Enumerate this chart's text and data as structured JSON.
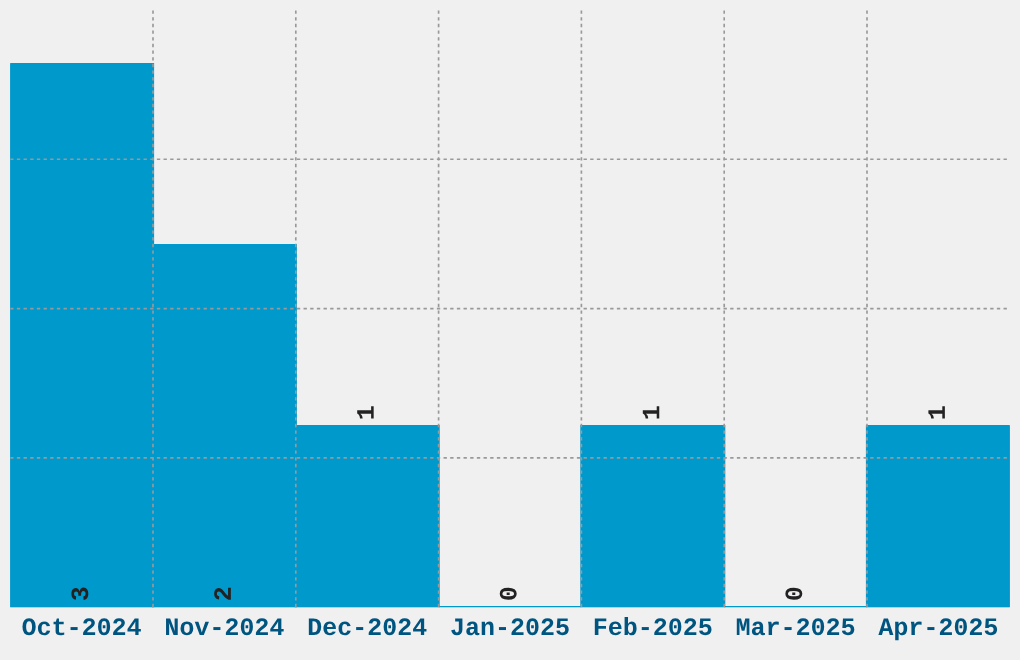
{
  "chart_data": {
    "type": "bar",
    "categories": [
      "Oct-2024",
      "Nov-2024",
      "Dec-2024",
      "Jan-2025",
      "Feb-2025",
      "Mar-2025",
      "Apr-2025"
    ],
    "values": [
      3,
      2,
      1,
      0,
      1,
      0,
      1
    ],
    "color": "#0099cc",
    "ylim": [
      0,
      3.3
    ],
    "yticks": [
      {
        "value": 0.825,
        "label": null
      },
      {
        "value": 1.65,
        "label": null
      },
      {
        "value": 2.475,
        "label": null
      }
    ],
    "tick_labels": "x",
    "data_labels": true,
    "grid": true
  }
}
